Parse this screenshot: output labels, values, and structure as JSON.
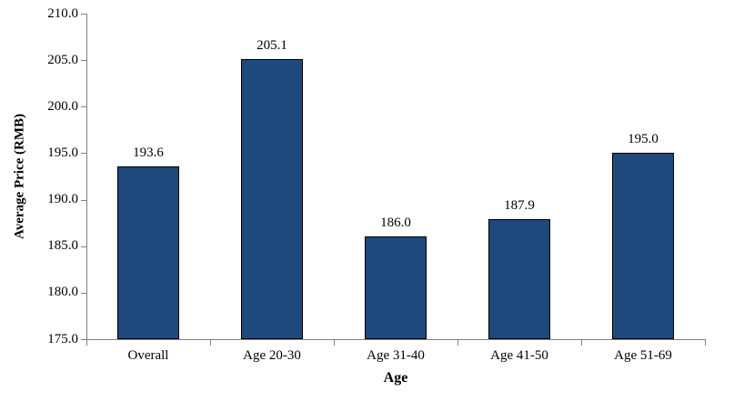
{
  "chart_data": {
    "type": "bar",
    "title": "",
    "categories": [
      "Overall",
      "Age 20-30",
      "Age 31-40",
      "Age 41-50",
      "Age 51-69"
    ],
    "values": [
      193.6,
      205.1,
      186.0,
      187.9,
      195.0
    ],
    "value_labels": [
      "193.6",
      "205.1",
      "186.0",
      "187.9",
      "195.0"
    ],
    "xlabel": "Age",
    "ylabel": "Average Price (RMB)",
    "ylim": [
      175.0,
      210.0
    ],
    "ytick_step": 5.0,
    "ytick_labels": [
      "175.0",
      "180.0",
      "185.0",
      "190.0",
      "195.0",
      "200.0",
      "205.0",
      "210.0"
    ],
    "grid": false,
    "legend": "none",
    "colors": {
      "bar_fill": "#1F497D",
      "bar_border": "#000000",
      "axis_line": "#808080",
      "text": "#000000",
      "background": "#FFFFFF"
    }
  }
}
